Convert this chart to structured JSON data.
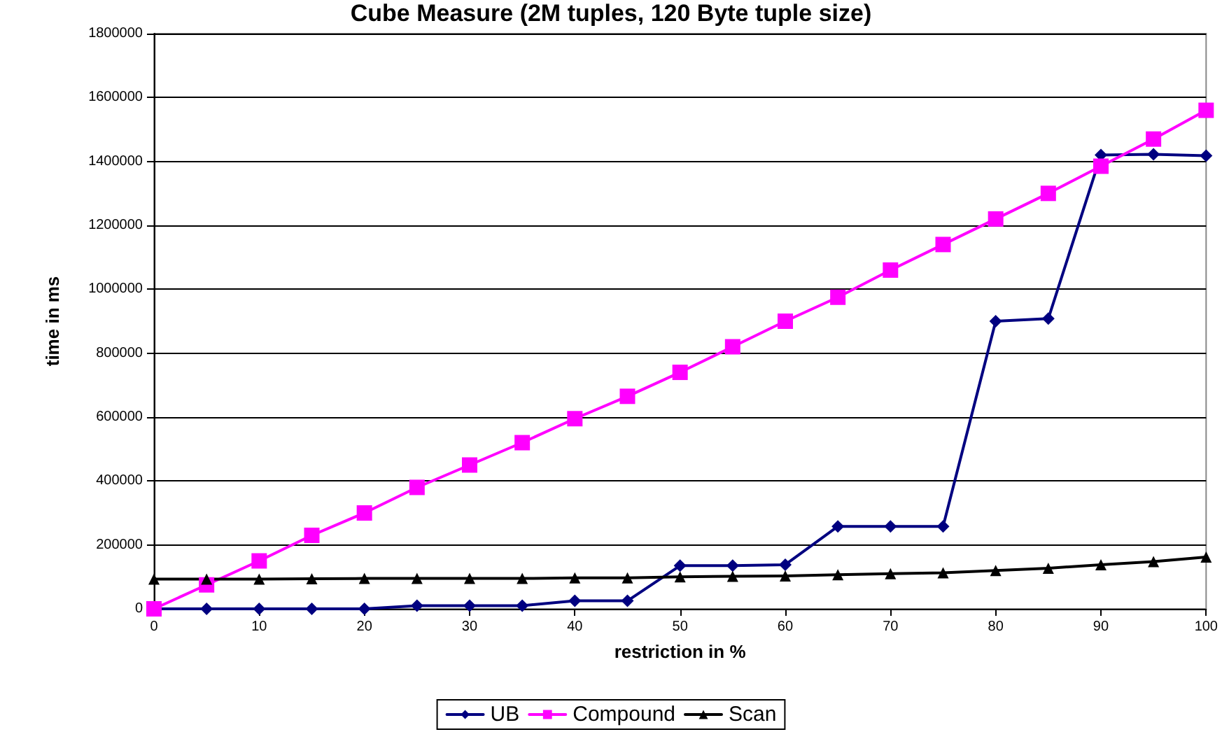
{
  "chart_data": {
    "type": "line",
    "title": "Cube Measure (2M tuples, 120 Byte tuple size)",
    "xlabel": "restriction in %",
    "ylabel": "time in ms",
    "x": [
      0,
      5,
      10,
      15,
      20,
      25,
      30,
      35,
      40,
      45,
      50,
      55,
      60,
      65,
      70,
      75,
      80,
      85,
      90,
      95,
      100
    ],
    "series": [
      {
        "name": "UB",
        "color": "#000080",
        "marker": "diamond",
        "values": [
          0,
          0,
          0,
          0,
          0,
          10000,
          10000,
          10000,
          25000,
          25000,
          135000,
          135000,
          138000,
          258000,
          258000,
          258000,
          900000,
          908000,
          1420000,
          1422000,
          1418000
        ]
      },
      {
        "name": "Compound",
        "color": "#ff00ff",
        "marker": "square",
        "values": [
          0,
          75000,
          150000,
          230000,
          300000,
          380000,
          450000,
          520000,
          595000,
          665000,
          740000,
          820000,
          900000,
          975000,
          1060000,
          1140000,
          1220000,
          1300000,
          1385000,
          1470000,
          1560000
        ]
      },
      {
        "name": "Scan",
        "color": "#000000",
        "marker": "triangle",
        "values": [
          93000,
          93000,
          93000,
          94000,
          95000,
          95000,
          95000,
          95000,
          97000,
          97000,
          100000,
          102000,
          103000,
          107000,
          110000,
          113000,
          120000,
          127000,
          138000,
          148000,
          162000
        ]
      }
    ],
    "xlim": [
      0,
      100
    ],
    "xticks": [
      0,
      10,
      20,
      30,
      40,
      50,
      60,
      70,
      80,
      90,
      100
    ],
    "ylim": [
      0,
      1800000
    ],
    "yticks": [
      0,
      200000,
      400000,
      600000,
      800000,
      1000000,
      1200000,
      1400000,
      1600000,
      1800000
    ],
    "grid": "y",
    "legend": "bottom"
  }
}
